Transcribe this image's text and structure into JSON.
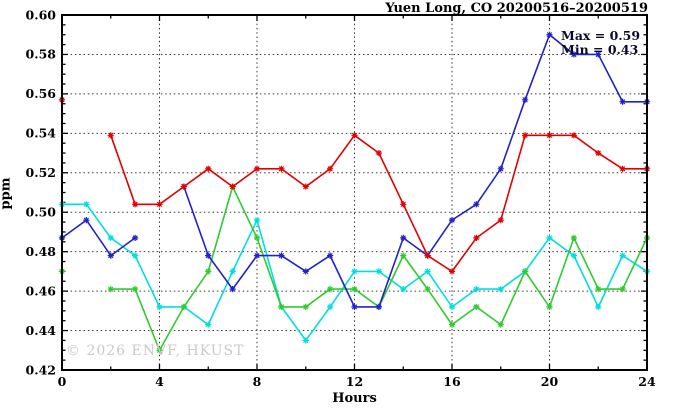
{
  "chart_data": {
    "type": "line",
    "title": "Yuen Long, CO 20200516–20200519",
    "xlabel": "Hours",
    "ylabel": "ppm",
    "xlim": [
      0,
      24
    ],
    "ylim": [
      0.42,
      0.6
    ],
    "x_ticks": {
      "major": [
        0,
        4,
        8,
        12,
        16,
        20,
        24
      ],
      "major_labels": [
        "0",
        "4",
        "8",
        "12",
        "16",
        "20",
        "24"
      ],
      "minor": [
        2,
        6,
        10,
        14,
        18,
        22
      ]
    },
    "y_ticks": {
      "major": [
        0.42,
        0.44,
        0.46,
        0.48,
        0.5,
        0.52,
        0.54,
        0.56,
        0.58,
        0.6
      ],
      "major_labels": [
        "0.42",
        "0.44",
        "0.46",
        "0.48",
        "0.50",
        "0.52",
        "0.54",
        "0.56",
        "0.58",
        "0.60"
      ],
      "minor_step": 0.005
    },
    "grid": {
      "x_lines": [
        4,
        8,
        12,
        16,
        20
      ],
      "y_lines": [
        0.44,
        0.46,
        0.48,
        0.5,
        0.52,
        0.54,
        0.56,
        0.58
      ],
      "style": "dotted"
    },
    "annotation": {
      "max_label": "Max = 0.59",
      "min_label": "Min = 0.43"
    },
    "watermark": "© 2026 ENVF, HKUST",
    "x": [
      0,
      1,
      2,
      3,
      4,
      5,
      6,
      7,
      8,
      9,
      10,
      11,
      12,
      13,
      14,
      15,
      16,
      17,
      18,
      19,
      20,
      21,
      22,
      23,
      24
    ],
    "series": [
      {
        "name": "cyan-line",
        "color": "#00dfdf",
        "marker": "star",
        "values": [
          0.504,
          0.504,
          0.487,
          0.478,
          0.452,
          0.452,
          0.443,
          0.47,
          0.496,
          0.452,
          0.435,
          0.452,
          0.47,
          0.47,
          0.461,
          0.47,
          0.452,
          0.461,
          0.461,
          0.47,
          0.487,
          0.478,
          0.452,
          0.478,
          0.47
        ]
      },
      {
        "name": "green-line",
        "color": "#2ecc2e",
        "marker": "star",
        "values": [
          0.47,
          null,
          0.461,
          0.461,
          0.43,
          0.452,
          0.47,
          0.513,
          0.487,
          0.452,
          0.452,
          0.461,
          0.461,
          0.452,
          0.478,
          0.461,
          0.443,
          0.452,
          0.443,
          0.47,
          0.452,
          0.487,
          0.461,
          0.461,
          0.487
        ]
      },
      {
        "name": "blue-line",
        "color": "#2222cc",
        "marker": "star",
        "values": [
          0.487,
          0.496,
          0.478,
          0.487,
          null,
          0.513,
          0.478,
          0.461,
          0.478,
          0.478,
          0.47,
          0.478,
          0.452,
          0.452,
          0.487,
          0.478,
          0.496,
          0.504,
          0.522,
          0.557,
          0.59,
          0.58,
          0.58,
          0.556,
          0.556
        ]
      },
      {
        "name": "red-line",
        "color": "#e30000",
        "marker": "star",
        "values": [
          0.557,
          null,
          0.539,
          0.504,
          0.504,
          0.513,
          0.522,
          0.513,
          0.522,
          0.522,
          0.513,
          0.522,
          0.539,
          0.53,
          0.504,
          0.478,
          0.47,
          0.487,
          0.496,
          0.539,
          0.539,
          0.539,
          0.53,
          0.522,
          0.522
        ]
      }
    ]
  }
}
